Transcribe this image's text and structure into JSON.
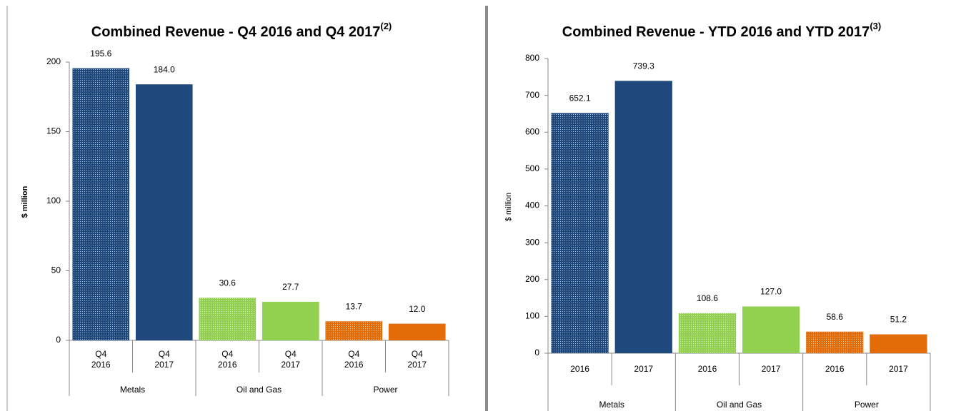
{
  "chart_data": [
    {
      "type": "bar",
      "title": "Combined Revenue - Q4 2016 and Q4 2017",
      "title_note": "(2)",
      "y_label": "$ million",
      "categories": [
        "Q4 2016",
        "Q4 2017",
        "Q4 2016",
        "Q4 2017",
        "Q4 2016",
        "Q4 2017"
      ],
      "groups": [
        "Metals",
        "Oil and Gas",
        "Power"
      ],
      "values": [
        195.6,
        184.0,
        30.6,
        27.7,
        13.7,
        12.0
      ],
      "value_labels": [
        "195.6",
        "184.0",
        "30.6",
        "27.7",
        "13.7",
        "12.0"
      ],
      "colors": [
        "#1f497d",
        "#1f497d",
        "#92d050",
        "#92d050",
        "#e36c09",
        "#e36c09"
      ],
      "dotted": [
        true,
        false,
        true,
        false,
        true,
        false
      ],
      "ylim": [
        0,
        200
      ],
      "yticks": [
        0,
        50,
        100,
        150,
        200
      ]
    },
    {
      "type": "bar",
      "title": "Combined Revenue - YTD 2016 and YTD 2017",
      "title_note": "(3)",
      "y_label": "$ million",
      "categories": [
        "2016",
        "2017",
        "2016",
        "2017",
        "2016",
        "2017"
      ],
      "groups": [
        "Metals",
        "Oil and Gas",
        "Power"
      ],
      "values": [
        652.1,
        739.3,
        108.6,
        127.0,
        58.6,
        51.2
      ],
      "value_labels": [
        "652.1",
        "739.3",
        "108.6",
        "127.0",
        "58.6",
        "51.2"
      ],
      "colors": [
        "#1f497d",
        "#1f497d",
        "#92d050",
        "#92d050",
        "#e36c09",
        "#e36c09"
      ],
      "dotted": [
        true,
        false,
        true,
        false,
        true,
        false
      ],
      "ylim": [
        0,
        800
      ],
      "yticks": [
        0,
        100,
        200,
        300,
        400,
        500,
        600,
        700,
        800
      ]
    }
  ]
}
